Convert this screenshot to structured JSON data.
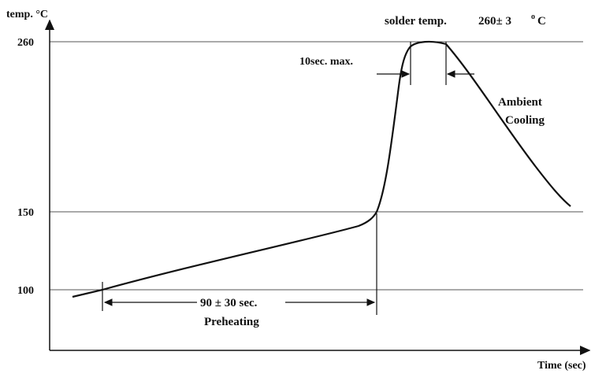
{
  "chart_data": {
    "type": "line",
    "title": "",
    "ylabel": "temp. °C",
    "xlabel": "Time (sec)",
    "y_ticks": [
      "260",
      "150",
      "100"
    ],
    "ylim": [
      75,
      275
    ],
    "grid": "horizontal lines at 100, 150, 260",
    "series": [
      {
        "values_note": "reflow temperature profile (time axis unscaled)",
        "points": [
          [
            0,
            95
          ],
          [
            20,
            98
          ],
          [
            55,
            105
          ],
          [
            100,
            113
          ],
          [
            150,
            122
          ],
          [
            200,
            131
          ],
          [
            250,
            139
          ],
          [
            290,
            145
          ],
          [
            310,
            148
          ],
          [
            322,
            151
          ],
          [
            330,
            165
          ],
          [
            336,
            190
          ],
          [
            342,
            225
          ],
          [
            347,
            252
          ],
          [
            352,
            258
          ],
          [
            362,
            260
          ],
          [
            375,
            260
          ],
          [
            388,
            258
          ],
          [
            400,
            248
          ],
          [
            420,
            232
          ],
          [
            440,
            218
          ],
          [
            460,
            204
          ],
          [
            480,
            190
          ],
          [
            500,
            177
          ],
          [
            520,
            166
          ],
          [
            540,
            160
          ]
        ]
      }
    ],
    "annotations": {
      "solder": "solder temp.",
      "solder_value": "260± 3",
      "solder_unit": "C",
      "ten_sec": "10sec. max.",
      "ambient_1": "Ambient",
      "ambient_2": "Cooling",
      "ninety": "90 ± 30 sec.",
      "preheating": "Preheating"
    }
  }
}
